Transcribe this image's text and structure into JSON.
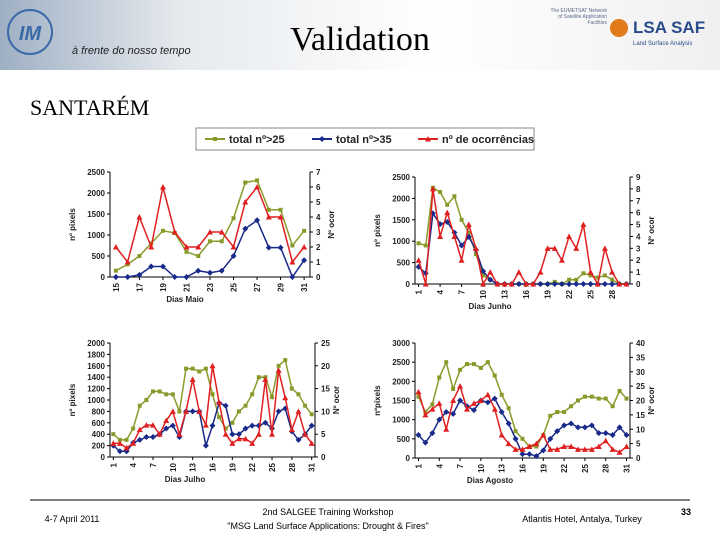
{
  "header": {
    "logo": "IM",
    "tagline": "à frente do nosso tempo",
    "title": "Validation",
    "brand": "LSA SAF",
    "brand_note": "The EUMETSAT Network of Satellite Application Facilities",
    "brand_sub": "Land Surface Analysis"
  },
  "subtitle": "SANTARÉM",
  "footer": {
    "date": "4-7 April 2011",
    "event": "2nd SALGEE Training Workshop",
    "event_sub": "\"MSG Land Surface Applications: Drought & Fires\"",
    "venue": "Atlantis Hotel, Antalya, Turkey",
    "page": "33"
  },
  "chart_data": [
    {
      "type": "line",
      "xlabel": "Dias Maio",
      "ylabel": "nº pixels",
      "y2label": "Nº ocor",
      "x": [
        15,
        16,
        17,
        18,
        19,
        20,
        21,
        22,
        23,
        24,
        25,
        26,
        27,
        28,
        29,
        30,
        31
      ],
      "xlim": [
        14.5,
        31.5
      ],
      "xticks": [
        15,
        17,
        19,
        21,
        23,
        25,
        27,
        29,
        31
      ],
      "ylim": [
        0,
        2500
      ],
      "yticks": [
        0,
        500,
        1000,
        1500,
        2000,
        2500
      ],
      "y2lim": [
        0,
        7
      ],
      "y2ticks": [
        0,
        1,
        2,
        3,
        4,
        5,
        6,
        7
      ],
      "series": [
        {
          "name": "total nº>25",
          "color": "#8a9a2a",
          "values": [
            150,
            300,
            500,
            800,
            1100,
            1050,
            600,
            500,
            850,
            850,
            1400,
            2250,
            2300,
            1600,
            1600,
            750,
            1100
          ]
        },
        {
          "name": "total nº>35",
          "color": "#1a2a8a",
          "values": [
            0,
            0,
            50,
            250,
            250,
            0,
            0,
            150,
            100,
            150,
            500,
            1150,
            1350,
            700,
            700,
            0,
            400
          ]
        },
        {
          "name": "nº de ocorrências",
          "color": "#e02020",
          "axis": "y2",
          "values": [
            2,
            1,
            4,
            2,
            6,
            3,
            2,
            2,
            3,
            3,
            2,
            5,
            6,
            4,
            4,
            1,
            2
          ]
        }
      ]
    },
    {
      "type": "line",
      "xlabel": "Dias Junho",
      "ylabel": "nº pixels",
      "y2label": "Nº ocor",
      "x": [
        1,
        2,
        3,
        4,
        5,
        6,
        7,
        8,
        9,
        10,
        11,
        12,
        13,
        14,
        15,
        16,
        17,
        18,
        19,
        20,
        21,
        22,
        23,
        24,
        25,
        26,
        27,
        28,
        29,
        30
      ],
      "xlim": [
        0.5,
        30.5
      ],
      "xticks": [
        1,
        4,
        7,
        10,
        13,
        16,
        19,
        22,
        25,
        28
      ],
      "ylim": [
        0,
        2500
      ],
      "yticks": [
        0,
        500,
        1000,
        1500,
        2000,
        2500
      ],
      "y2lim": [
        0,
        9
      ],
      "y2ticks": [
        0,
        1,
        2,
        3,
        4,
        5,
        6,
        7,
        8,
        9
      ],
      "series": [
        {
          "color": "#8a9a2a",
          "values": [
            950,
            900,
            2250,
            2150,
            1850,
            2050,
            1500,
            1200,
            700,
            200,
            100,
            0,
            0,
            0,
            0,
            0,
            0,
            0,
            0,
            50,
            0,
            100,
            100,
            250,
            200,
            150,
            200,
            100,
            0,
            0
          ]
        },
        {
          "color": "#1a2a8a",
          "values": [
            400,
            250,
            1650,
            1400,
            1450,
            1200,
            900,
            1100,
            800,
            300,
            100,
            0,
            0,
            0,
            0,
            0,
            0,
            0,
            0,
            0,
            0,
            0,
            0,
            0,
            0,
            0,
            0,
            0,
            0,
            0
          ]
        },
        {
          "color": "#e02020",
          "axis": "y2",
          "values": [
            2,
            0,
            8,
            4,
            6,
            4,
            2,
            5,
            3,
            0,
            1,
            0,
            0,
            0,
            1,
            0,
            0,
            1,
            3,
            3,
            2,
            4,
            3,
            5,
            1,
            0,
            3,
            1,
            0,
            0
          ]
        }
      ]
    },
    {
      "type": "line",
      "xlabel": "Dias Julho",
      "ylabel": "nº pixels",
      "y2label": "Nº ocor",
      "x": [
        1,
        2,
        3,
        4,
        5,
        6,
        7,
        8,
        9,
        10,
        11,
        12,
        13,
        14,
        15,
        16,
        17,
        18,
        19,
        20,
        21,
        22,
        23,
        24,
        25,
        26,
        27,
        28,
        29,
        30,
        31
      ],
      "xlim": [
        0.5,
        31.5
      ],
      "xticks": [
        1,
        4,
        7,
        10,
        13,
        16,
        19,
        22,
        25,
        28,
        31
      ],
      "ylim": [
        0,
        2000
      ],
      "yticks": [
        0,
        200,
        400,
        600,
        800,
        1000,
        1200,
        1400,
        1600,
        1800,
        2000
      ],
      "y2lim": [
        0,
        25
      ],
      "y2ticks": [
        0,
        5,
        10,
        15,
        20,
        25
      ],
      "series": [
        {
          "color": "#8a9a2a",
          "values": [
            400,
            300,
            300,
            500,
            900,
            1000,
            1150,
            1150,
            1100,
            1100,
            800,
            1550,
            1550,
            1500,
            1550,
            1100,
            700,
            500,
            600,
            800,
            900,
            1100,
            1400,
            1400,
            1050,
            1600,
            1700,
            1200,
            1100,
            900,
            750
          ]
        },
        {
          "color": "#1a2a8a",
          "values": [
            200,
            100,
            100,
            250,
            300,
            350,
            350,
            400,
            500,
            550,
            350,
            800,
            800,
            800,
            200,
            550,
            950,
            900,
            400,
            400,
            500,
            550,
            550,
            600,
            500,
            800,
            850,
            450,
            300,
            400,
            550
          ]
        },
        {
          "color": "#e02020",
          "axis": "y2",
          "values": [
            3,
            3,
            2,
            3,
            6,
            7,
            7,
            5,
            8,
            10,
            5,
            10,
            17,
            10,
            7,
            20,
            12,
            5,
            3,
            4,
            4,
            3,
            5,
            17,
            5,
            19,
            13,
            6,
            10,
            5,
            3
          ]
        }
      ]
    },
    {
      "type": "line",
      "xlabel": "Dias Agosto",
      "ylabel": "nºpixels",
      "y2label": "Nº ocor",
      "x": [
        1,
        2,
        3,
        4,
        5,
        6,
        7,
        8,
        9,
        10,
        11,
        12,
        13,
        14,
        15,
        16,
        17,
        18,
        19,
        20,
        21,
        22,
        23,
        24,
        25,
        26,
        27,
        28,
        29,
        30,
        31
      ],
      "xlim": [
        0.5,
        31.5
      ],
      "xticks": [
        1,
        4,
        7,
        10,
        13,
        16,
        19,
        22,
        25,
        28,
        31
      ],
      "ylim": [
        0,
        3000
      ],
      "yticks": [
        0,
        500,
        1000,
        1500,
        2000,
        2500,
        3000
      ],
      "y2lim": [
        0,
        40
      ],
      "y2ticks": [
        0,
        5,
        10,
        15,
        20,
        25,
        30,
        35,
        40
      ],
      "series": [
        {
          "color": "#8a9a2a",
          "values": [
            1600,
            1200,
            1400,
            2100,
            2500,
            1800,
            2300,
            2450,
            2450,
            2350,
            2500,
            2150,
            1650,
            1300,
            700,
            500,
            300,
            300,
            600,
            1100,
            1200,
            1200,
            1350,
            1500,
            1600,
            1600,
            1550,
            1550,
            1350,
            1750,
            1550
          ]
        },
        {
          "color": "#1a2a8a",
          "values": [
            600,
            400,
            650,
            1000,
            1200,
            1150,
            1500,
            1350,
            1250,
            1500,
            1450,
            1550,
            1200,
            900,
            500,
            100,
            100,
            50,
            200,
            500,
            700,
            850,
            900,
            800,
            800,
            850,
            650,
            650,
            600,
            800,
            600
          ]
        },
        {
          "color": "#e02020",
          "axis": "y2",
          "values": [
            23,
            15,
            17,
            19,
            10,
            20,
            25,
            17,
            19,
            20,
            22,
            17,
            8,
            5,
            3,
            3,
            4,
            5,
            8,
            3,
            3,
            4,
            4,
            3,
            3,
            3,
            4,
            6,
            3,
            2,
            4
          ]
        }
      ]
    }
  ]
}
